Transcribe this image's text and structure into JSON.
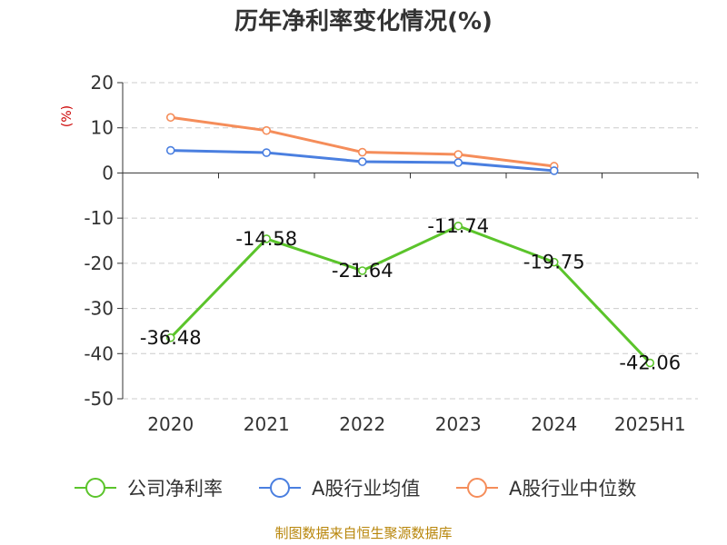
{
  "chart_data": {
    "type": "line",
    "title": "历年净利率变化情况(%)",
    "ylabel": "(%)",
    "categories": [
      "2020",
      "2021",
      "2022",
      "2023",
      "2024",
      "2025H1"
    ],
    "ylim": [
      -50,
      20
    ],
    "yticks": [
      20,
      10,
      0,
      -10,
      -20,
      -30,
      -40,
      -50
    ],
    "grid": true,
    "legend_position": "bottom",
    "series": [
      {
        "name": "公司净利率",
        "color": "#5bc42b",
        "values": [
          -36.48,
          -14.58,
          -21.64,
          -11.74,
          -19.75,
          -42.06
        ],
        "labels": [
          "-36.48",
          "-14.58",
          "-21.64",
          "-11.74",
          "-19.75",
          "-42.06"
        ]
      },
      {
        "name": "A股行业均值",
        "color": "#4a7fe0",
        "values": [
          5.0,
          4.5,
          2.5,
          2.3,
          0.5,
          null
        ]
      },
      {
        "name": "A股行业中位数",
        "color": "#f58d5a",
        "values": [
          12.3,
          9.4,
          4.6,
          4.1,
          1.5,
          null
        ]
      }
    ]
  },
  "source_text": "制图数据来自恒生聚源数据库"
}
